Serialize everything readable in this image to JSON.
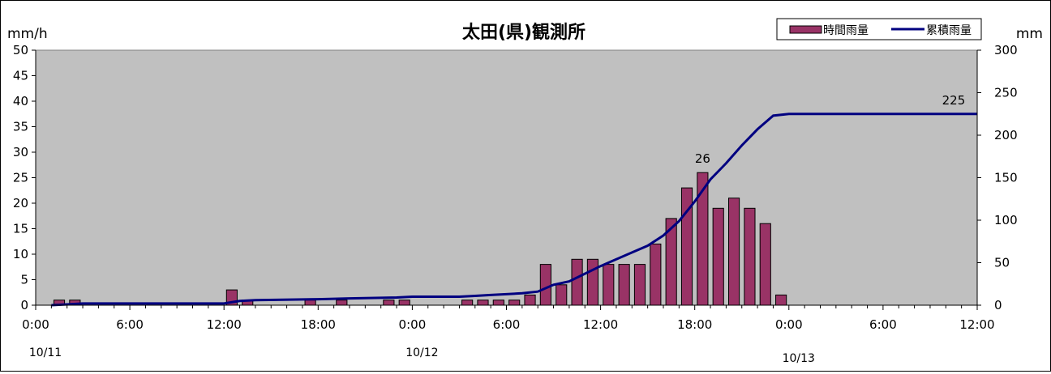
{
  "chart_data": {
    "type": "bar",
    "title": "太田(県)観測所",
    "left_axis_unit": "mm/h",
    "right_axis_unit": "mm",
    "y_left": {
      "min": 0,
      "max": 50,
      "ticks": [
        "0",
        "5",
        "10",
        "15",
        "20",
        "25",
        "30",
        "35",
        "40",
        "45",
        "50"
      ]
    },
    "y_right": {
      "min": 0,
      "max": 300,
      "ticks": [
        "0",
        "50",
        "100",
        "150",
        "200",
        "250",
        "300"
      ]
    },
    "x_hours": {
      "min": 0,
      "max": 60
    },
    "x_tick_labels": [
      "0:00",
      "6:00",
      "12:00",
      "18:00",
      "0:00",
      "6:00",
      "12:00",
      "18:00",
      "0:00",
      "6:00",
      "12:00"
    ],
    "date_labels": [
      {
        "label": "10/11",
        "hour": 0
      },
      {
        "label": "10/12",
        "hour": 24
      },
      {
        "label": "10/13",
        "hour": 48
      }
    ],
    "grid": false,
    "legend_position": "top-right",
    "series": [
      {
        "name": "時間雨量",
        "kind": "bar",
        "color": "#993366",
        "axis": "left",
        "data": [
          {
            "hour": 2,
            "value": 1
          },
          {
            "hour": 3,
            "value": 1
          },
          {
            "hour": 13,
            "value": 3
          },
          {
            "hour": 14,
            "value": 1
          },
          {
            "hour": 18,
            "value": 1
          },
          {
            "hour": 20,
            "value": 1
          },
          {
            "hour": 23,
            "value": 1
          },
          {
            "hour": 24,
            "value": 1
          },
          {
            "hour": 28,
            "value": 1
          },
          {
            "hour": 29,
            "value": 1
          },
          {
            "hour": 30,
            "value": 1
          },
          {
            "hour": 31,
            "value": 1
          },
          {
            "hour": 32,
            "value": 2
          },
          {
            "hour": 33,
            "value": 8
          },
          {
            "hour": 34,
            "value": 4
          },
          {
            "hour": 35,
            "value": 9
          },
          {
            "hour": 36,
            "value": 9
          },
          {
            "hour": 37,
            "value": 8
          },
          {
            "hour": 38,
            "value": 8
          },
          {
            "hour": 39,
            "value": 8
          },
          {
            "hour": 40,
            "value": 12
          },
          {
            "hour": 41,
            "value": 17
          },
          {
            "hour": 42,
            "value": 23
          },
          {
            "hour": 43,
            "value": 26
          },
          {
            "hour": 44,
            "value": 19
          },
          {
            "hour": 45,
            "value": 21
          },
          {
            "hour": 46,
            "value": 19
          },
          {
            "hour": 47,
            "value": 16
          },
          {
            "hour": 48,
            "value": 2
          }
        ]
      },
      {
        "name": "累積雨量",
        "kind": "line",
        "color": "#000080",
        "axis": "right",
        "data": [
          {
            "hour": 1,
            "value": 0
          },
          {
            "hour": 2,
            "value": 1
          },
          {
            "hour": 3,
            "value": 2
          },
          {
            "hour": 12,
            "value": 2
          },
          {
            "hour": 13,
            "value": 5
          },
          {
            "hour": 14,
            "value": 6
          },
          {
            "hour": 18,
            "value": 7
          },
          {
            "hour": 20,
            "value": 8
          },
          {
            "hour": 23,
            "value": 9
          },
          {
            "hour": 24,
            "value": 10
          },
          {
            "hour": 27,
            "value": 10
          },
          {
            "hour": 28,
            "value": 11
          },
          {
            "hour": 29,
            "value": 12
          },
          {
            "hour": 30,
            "value": 13
          },
          {
            "hour": 31,
            "value": 14
          },
          {
            "hour": 32,
            "value": 16
          },
          {
            "hour": 33,
            "value": 24
          },
          {
            "hour": 34,
            "value": 28
          },
          {
            "hour": 35,
            "value": 37
          },
          {
            "hour": 36,
            "value": 46
          },
          {
            "hour": 37,
            "value": 54
          },
          {
            "hour": 38,
            "value": 62
          },
          {
            "hour": 39,
            "value": 70
          },
          {
            "hour": 40,
            "value": 82
          },
          {
            "hour": 41,
            "value": 99
          },
          {
            "hour": 42,
            "value": 122
          },
          {
            "hour": 43,
            "value": 148
          },
          {
            "hour": 44,
            "value": 167
          },
          {
            "hour": 45,
            "value": 188
          },
          {
            "hour": 46,
            "value": 207
          },
          {
            "hour": 47,
            "value": 223
          },
          {
            "hour": 48,
            "value": 225
          },
          {
            "hour": 60,
            "value": 225
          }
        ]
      }
    ],
    "annotations": [
      {
        "text": "26",
        "hour": 43,
        "value": 26,
        "axis": "left"
      },
      {
        "text": "225",
        "hour": 58.5,
        "value": 225,
        "axis": "right"
      }
    ]
  }
}
